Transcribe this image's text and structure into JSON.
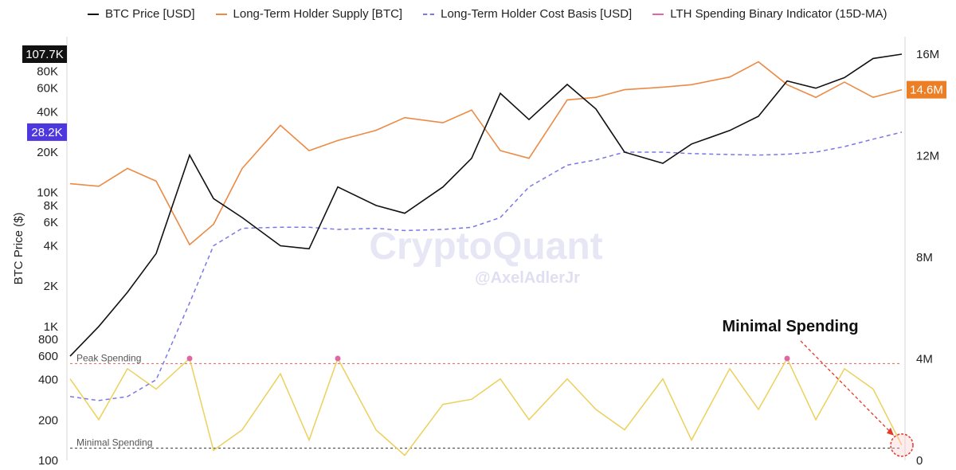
{
  "legend": {
    "btc_price": "BTC Price [USD]",
    "lth_supply": "Long-Term Holder Supply [BTC]",
    "lth_cost_basis": "Long-Term Holder Cost Basis [USD]",
    "lth_spending": "LTH Spending Binary Indicator (15D-MA)"
  },
  "colors": {
    "btc_price": "#111111",
    "lth_supply": "#ec8a44",
    "lth_cost_basis": "#7b78e6",
    "lth_spending_high": "#e066a6",
    "lth_spending": "#ecd05c",
    "peak_line": "#e06060",
    "minimal_line": "#333333",
    "annotation_circle": "#e33a2a",
    "badge_price": "#111111",
    "badge_cost_basis": "#4d38e0",
    "badge_supply": "#ec7e26"
  },
  "watermark": {
    "brand": "CryptoQuant",
    "author": "@AxelAdlerJr"
  },
  "annotations": {
    "minimal_spending_callout": "Minimal Spending",
    "peak_spending_label": "Peak Spending",
    "minimal_spending_label": "Minimal Spending"
  },
  "chart_data": {
    "type": "line",
    "ylabel_left": "BTC Price ($)",
    "y_left_scale": "log",
    "y_left_ticks": [
      "100",
      "200",
      "400",
      "600",
      "800",
      "1K",
      "2K",
      "4K",
      "6K",
      "8K",
      "10K",
      "20K",
      "40K",
      "60K",
      "80K"
    ],
    "y_right_ticks": [
      "0",
      "4M",
      "8M",
      "12M",
      "16M"
    ],
    "badges": {
      "btc_price": "107.7K",
      "lth_cost_basis": "28.2K",
      "lth_supply": "14.6M"
    },
    "x": [
      2016.7,
      2017.0,
      2017.3,
      2017.6,
      2017.95,
      2018.2,
      2018.5,
      2018.9,
      2019.2,
      2019.5,
      2019.9,
      2020.2,
      2020.6,
      2020.9,
      2021.2,
      2021.5,
      2021.9,
      2022.2,
      2022.5,
      2022.9,
      2023.2,
      2023.6,
      2023.9,
      2024.2,
      2024.5,
      2024.8,
      2025.1,
      2025.4
    ],
    "series": [
      {
        "name": "BTC Price [USD]",
        "values": [
          600,
          1000,
          1800,
          3500,
          19000,
          9000,
          6500,
          4000,
          3800,
          11000,
          8000,
          7000,
          11000,
          18000,
          55000,
          35000,
          64000,
          42000,
          20000,
          16500,
          23000,
          29000,
          37000,
          68000,
          60000,
          72000,
          100000,
          107700
        ]
      },
      {
        "name": "Long-Term Holder Supply [BTC]",
        "values": [
          10900000,
          10800000,
          11500000,
          11000000,
          8500000,
          9300000,
          11500000,
          13200000,
          12200000,
          12600000,
          13000000,
          13500000,
          13300000,
          13800000,
          12200000,
          11900000,
          14200000,
          14300000,
          14600000,
          14700000,
          14800000,
          15100000,
          15700000,
          14800000,
          14300000,
          14900000,
          14300000,
          14600000
        ]
      },
      {
        "name": "Long-Term Holder Cost Basis [USD]",
        "values": [
          300,
          280,
          300,
          400,
          1500,
          4000,
          5400,
          5500,
          5500,
          5300,
          5400,
          5200,
          5300,
          5500,
          6500,
          11000,
          16000,
          17500,
          20000,
          20000,
          19500,
          19200,
          19000,
          19300,
          20000,
          22000,
          25000,
          28200
        ]
      },
      {
        "name": "LTH Spending Binary Indicator (15D-MA)",
        "values": [
          0.8,
          0.4,
          0.9,
          0.7,
          1.0,
          0.1,
          0.3,
          0.85,
          0.2,
          1.0,
          0.3,
          0.05,
          0.55,
          0.6,
          0.8,
          0.4,
          0.8,
          0.5,
          0.3,
          0.8,
          0.2,
          0.9,
          0.5,
          1.0,
          0.4,
          0.9,
          0.7,
          0.15
        ]
      }
    ],
    "reference_lines": {
      "peak_spending": 0.95,
      "minimal_spending": 0.12
    }
  }
}
